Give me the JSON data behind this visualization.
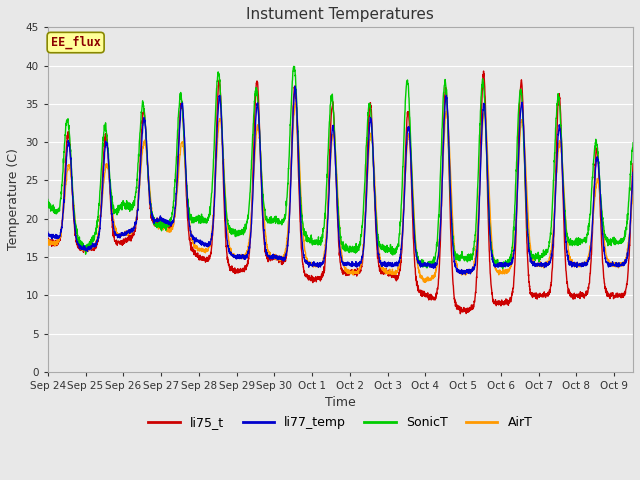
{
  "title": "Instument Temperatures",
  "xlabel": "Time",
  "ylabel": "Temperature (C)",
  "ylim": [
    0,
    45
  ],
  "yticks": [
    0,
    5,
    10,
    15,
    20,
    25,
    30,
    35,
    40,
    45
  ],
  "background_color": "#e8e8e8",
  "plot_bg_color": "#e8e8e8",
  "grid_color": "#ffffff",
  "series_colors": {
    "li75_t": "#cc0000",
    "li77_temp": "#0000cc",
    "SonicT": "#00cc00",
    "AirT": "#ff9900"
  },
  "annotation_text": "EE_flux",
  "annotation_bg": "#ffff99",
  "annotation_border": "#999900",
  "x_tick_labels": [
    "Sep 24",
    "Sep 25",
    "Sep 26",
    "Sep 27",
    "Sep 28",
    "Sep 29",
    "Sep 30",
    "Oct 1",
    "Oct 2",
    "Oct 3",
    "Oct 4",
    "Oct 5",
    "Oct 6",
    "Oct 7",
    "Oct 8",
    "Oct 9"
  ],
  "day_peaks_li75": [
    31,
    31,
    34,
    35,
    38,
    38,
    37,
    35,
    35,
    34,
    37,
    39,
    38,
    36,
    29
  ],
  "day_peaks_li77": [
    30,
    30,
    33,
    35,
    36,
    35,
    37,
    32,
    33,
    32,
    36,
    35,
    35,
    32,
    28
  ],
  "day_peaks_sonic": [
    33,
    32,
    35,
    36,
    39,
    37,
    40,
    36,
    35,
    38,
    38,
    38,
    37,
    36,
    30
  ],
  "day_peaks_air": [
    27,
    27,
    30,
    30,
    33,
    32,
    35,
    31,
    31,
    31,
    34,
    34,
    33,
    30,
    25
  ],
  "day_valleys_li75": [
    17,
    16,
    17,
    20,
    15,
    13,
    15,
    12,
    13,
    13,
    10,
    8,
    9,
    10,
    10
  ],
  "day_valleys_li77": [
    18,
    16,
    18,
    20,
    17,
    15,
    15,
    14,
    14,
    14,
    14,
    13,
    14,
    14,
    14
  ],
  "day_valleys_sonic": [
    22,
    16,
    22,
    19,
    20,
    18,
    20,
    17,
    16,
    16,
    14,
    15,
    14,
    15,
    17
  ],
  "day_valleys_air": [
    17,
    16,
    18,
    19,
    16,
    15,
    15,
    14,
    13,
    13,
    12,
    13,
    13,
    14,
    14
  ]
}
